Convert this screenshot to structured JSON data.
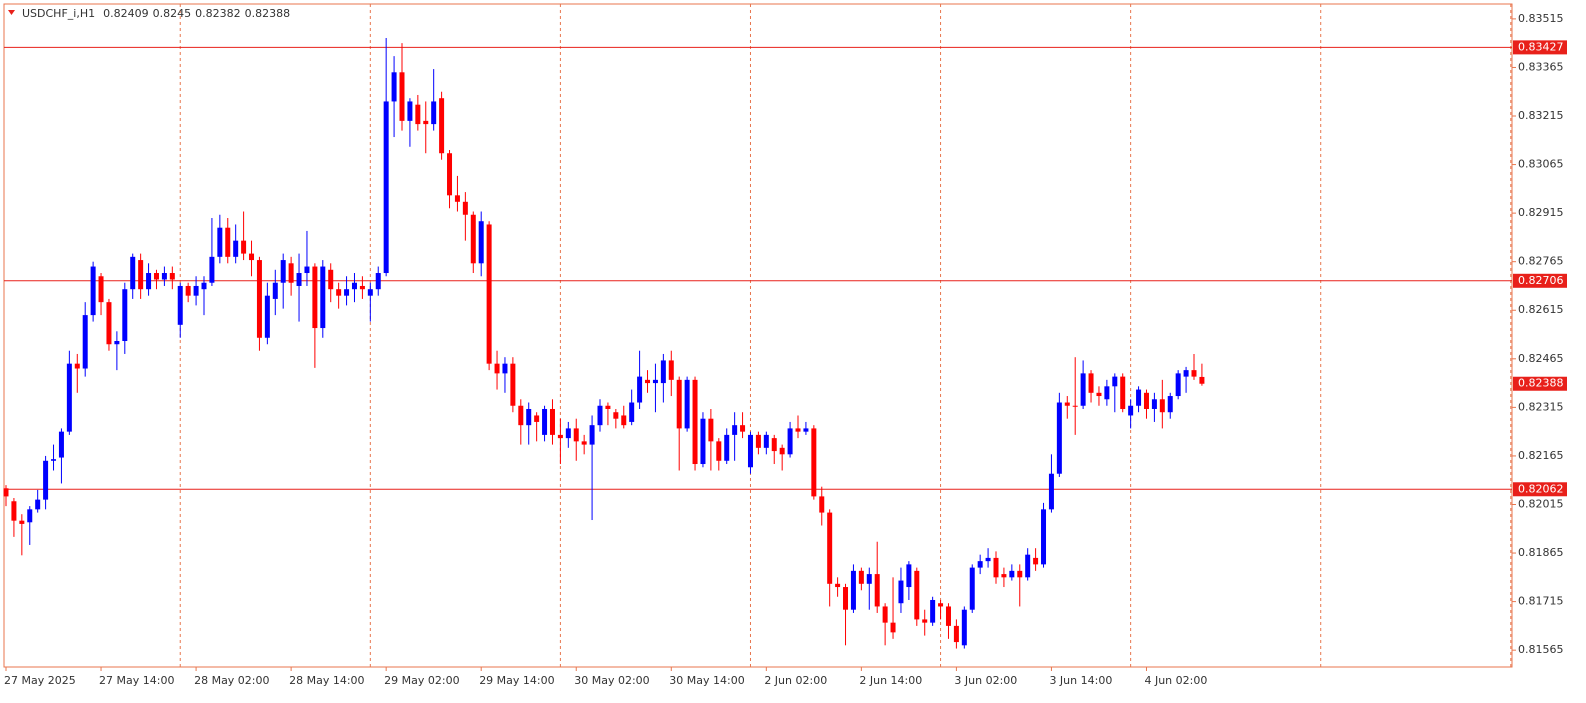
{
  "chart_data": {
    "type": "candlestick",
    "title": "USDCHF_i,H1",
    "up_color": "#0000ff",
    "down_color": "#ff0000",
    "level_color": "#e8201a",
    "grid": true,
    "ylim": [
      0.81513,
      0.83561
    ],
    "yticks": [
      0.83515,
      0.83365,
      0.83215,
      0.83065,
      0.82915,
      0.82765,
      0.82615,
      0.82465,
      0.82315,
      0.82165,
      0.82015,
      0.81865,
      0.81715,
      0.81565
    ],
    "levels": [
      0.83427,
      0.82706,
      0.82062
    ],
    "categories": [
      "27 May 2025",
      null,
      null,
      null,
      null,
      null,
      null,
      null,
      null,
      null,
      null,
      null,
      "27 May 14:00",
      null,
      null,
      null,
      null,
      null,
      null,
      null,
      null,
      null,
      null,
      null,
      "28 May 02:00",
      null,
      null,
      null,
      null,
      null,
      null,
      null,
      null,
      null,
      null,
      null,
      "28 May 14:00",
      null,
      null,
      null,
      null,
      null,
      null,
      null,
      null,
      null,
      null,
      null,
      "29 May 02:00",
      null,
      null,
      null,
      null,
      null,
      null,
      null,
      null,
      null,
      null,
      null,
      "29 May 14:00",
      null,
      null,
      null,
      null,
      null,
      null,
      null,
      null,
      null,
      null,
      null,
      "30 May 02:00",
      null,
      null,
      null,
      null,
      null,
      null,
      null,
      null,
      null,
      null,
      null,
      "30 May 14:00",
      null,
      null,
      null,
      null,
      null,
      null,
      null,
      null,
      null,
      null,
      null,
      "2 Jun 02:00",
      null,
      null,
      null,
      null,
      null,
      null,
      null,
      null,
      null,
      null,
      null,
      "2 Jun 14:00",
      null,
      null,
      null,
      null,
      null,
      null,
      null,
      null,
      null,
      null,
      null,
      "3 Jun 02:00",
      null,
      null,
      null,
      null,
      null,
      null,
      null,
      null,
      null,
      null,
      null,
      "3 Jun 14:00",
      null,
      null,
      null,
      null,
      null,
      null,
      null,
      null,
      null,
      null,
      null,
      "4 Jun 02:00",
      null,
      null,
      null,
      null,
      null,
      null,
      null
    ],
    "open": [
      0.82065,
      0.82025,
      0.81965,
      0.8196,
      0.82,
      0.8203,
      0.8215,
      0.8216,
      0.8224,
      0.8245,
      0.82435,
      0.826,
      0.8272,
      0.8264,
      0.8251,
      0.8252,
      0.8268,
      0.8277,
      0.8268,
      0.8273,
      0.8271,
      0.8273,
      0.8257,
      0.8269,
      0.8266,
      0.8268,
      0.827,
      0.8278,
      0.8287,
      0.8278,
      0.8283,
      0.8279,
      0.8277,
      0.8253,
      0.8265,
      0.827,
      0.8276,
      0.8269,
      0.8273,
      0.8275,
      0.8256,
      0.8274,
      0.8268,
      0.8266,
      0.8268,
      0.8269,
      0.8266,
      0.8268,
      0.8273,
      0.8326,
      0.8335,
      0.832,
      0.8325,
      0.832,
      0.8319,
      0.8327,
      0.831,
      0.8297,
      0.8295,
      0.8291,
      0.8276,
      0.8288,
      0.8245,
      0.8242,
      0.8245,
      0.8232,
      0.8226,
      0.8229,
      0.8223,
      0.8231,
      0.8223,
      0.8222,
      0.8225,
      0.8221,
      0.822,
      0.8226,
      0.8232,
      0.823,
      0.8229,
      0.8227,
      0.8233,
      0.824,
      0.8239,
      0.8239,
      0.8246,
      0.824,
      0.8225,
      0.824,
      0.8214,
      0.8228,
      0.8221,
      0.8215,
      0.8223,
      0.8226,
      0.8213,
      0.8223,
      0.8219,
      0.8222,
      0.8219,
      0.8217,
      0.8225,
      0.8224,
      0.8225,
      0.8204,
      0.8199,
      0.8177,
      0.8176,
      0.8169,
      0.8181,
      0.8177,
      0.818,
      0.817,
      0.8165,
      0.8171,
      0.8176,
      0.8181,
      0.8166,
      0.8165,
      0.8171,
      0.817,
      0.8164,
      0.8158,
      0.8169,
      0.8182,
      0.8184,
      0.8185,
      0.818,
      0.8179,
      0.8181,
      0.8179,
      0.8185,
      0.8183,
      0.82,
      0.8211,
      0.8233,
      0.8232,
      0.8232,
      0.8242,
      0.8236,
      0.8234,
      0.8238,
      0.8241,
      0.8229,
      0.8232,
      0.8236,
      0.8231,
      0.8234,
      0.823,
      0.8235,
      0.8241,
      0.8243,
      0.82409
    ],
    "high": [
      0.82075,
      0.82035,
      0.81985,
      0.8201,
      0.8206,
      0.82165,
      0.822,
      0.8225,
      0.8249,
      0.8248,
      0.8264,
      0.82765,
      0.8273,
      0.8265,
      0.8255,
      0.827,
      0.8279,
      0.8279,
      0.8276,
      0.8274,
      0.8275,
      0.8275,
      0.827,
      0.827,
      0.8272,
      0.8272,
      0.829,
      0.8291,
      0.829,
      0.8288,
      0.8292,
      0.8283,
      0.8278,
      0.827,
      0.8274,
      0.8279,
      0.8278,
      0.8279,
      0.8286,
      0.8276,
      0.8277,
      0.8276,
      0.827,
      0.8272,
      0.8273,
      0.8272,
      0.827,
      0.8275,
      0.83456,
      0.834,
      0.8344,
      0.8327,
      0.8328,
      0.8326,
      0.8336,
      0.8329,
      0.8311,
      0.8303,
      0.8298,
      0.8292,
      0.8292,
      0.8289,
      0.8249,
      0.8247,
      0.8247,
      0.8234,
      0.8233,
      0.823,
      0.8232,
      0.8234,
      0.8228,
      0.8227,
      0.8228,
      0.8223,
      0.8229,
      0.8234,
      0.8233,
      0.8231,
      0.8232,
      0.8237,
      0.8249,
      0.8243,
      0.8245,
      0.8248,
      0.8249,
      0.8241,
      0.8241,
      0.8241,
      0.823,
      0.8231,
      0.8222,
      0.8225,
      0.823,
      0.823,
      0.8224,
      0.8224,
      0.8224,
      0.8223,
      0.822,
      0.8227,
      0.8229,
      0.8227,
      0.8226,
      0.8207,
      0.82,
      0.8179,
      0.8177,
      0.8183,
      0.8182,
      0.8182,
      0.819,
      0.8171,
      0.8179,
      0.8182,
      0.8184,
      0.8182,
      0.8169,
      0.8173,
      0.8172,
      0.8171,
      0.8166,
      0.817,
      0.8183,
      0.8186,
      0.8188,
      0.8187,
      0.8182,
      0.8183,
      0.8183,
      0.8188,
      0.8188,
      0.8202,
      0.8217,
      0.8236,
      0.8235,
      0.8247,
      0.8246,
      0.8243,
      0.8238,
      0.824,
      0.8242,
      0.8242,
      0.8234,
      0.8238,
      0.8237,
      0.8236,
      0.824,
      0.8236,
      0.8243,
      0.8244,
      0.8248,
      0.8245
    ],
    "low": [
      0.8201,
      0.81915,
      0.81858,
      0.8189,
      0.8199,
      0.82,
      0.8212,
      0.8208,
      0.8223,
      0.8236,
      0.8241,
      0.8258,
      0.826,
      0.8249,
      0.8243,
      0.8248,
      0.8265,
      0.8265,
      0.8266,
      0.8268,
      0.8269,
      0.8268,
      0.8253,
      0.8264,
      0.8263,
      0.826,
      0.8269,
      0.8276,
      0.8276,
      0.8276,
      0.8277,
      0.8272,
      0.8249,
      0.8251,
      0.826,
      0.8262,
      0.8266,
      0.8258,
      0.8269,
      0.82437,
      0.8253,
      0.8264,
      0.8262,
      0.8263,
      0.8264,
      0.8265,
      0.8258,
      0.8266,
      0.8272,
      0.8315,
      0.8317,
      0.8312,
      0.8317,
      0.831,
      0.8317,
      0.8308,
      0.8293,
      0.8292,
      0.8283,
      0.8273,
      0.8272,
      0.8243,
      0.8237,
      0.8236,
      0.823,
      0.822,
      0.822,
      0.8221,
      0.8221,
      0.822,
      0.8214,
      0.8219,
      0.8215,
      0.8217,
      0.81967,
      0.8224,
      0.8226,
      0.8225,
      0.8225,
      0.8226,
      0.8231,
      0.8236,
      0.823,
      0.8233,
      0.8235,
      0.8212,
      0.8224,
      0.8212,
      0.8213,
      0.8212,
      0.8212,
      0.8214,
      0.8215,
      0.8222,
      0.8211,
      0.8217,
      0.8217,
      0.8214,
      0.8212,
      0.8216,
      0.8222,
      0.8223,
      0.8203,
      0.8195,
      0.817,
      0.8173,
      0.8158,
      0.8168,
      0.8175,
      0.8169,
      0.8168,
      0.8158,
      0.816,
      0.8168,
      0.8172,
      0.8164,
      0.8161,
      0.8164,
      0.8166,
      0.816,
      0.8157,
      0.8157,
      0.8168,
      0.818,
      0.8182,
      0.8177,
      0.8176,
      0.8178,
      0.817,
      0.8178,
      0.8181,
      0.8182,
      0.8199,
      0.821,
      0.8228,
      0.8223,
      0.8231,
      0.8233,
      0.8232,
      0.8232,
      0.823,
      0.823,
      0.8225,
      0.823,
      0.8228,
      0.8227,
      0.8225,
      0.8228,
      0.8234,
      0.8236,
      0.824,
      0.82382
    ],
    "close": [
      0.8204,
      0.81965,
      0.81955,
      0.82,
      0.8203,
      0.8215,
      0.82155,
      0.8224,
      0.8245,
      0.82435,
      0.826,
      0.8275,
      0.8264,
      0.8251,
      0.8252,
      0.8268,
      0.8278,
      0.8268,
      0.8273,
      0.8271,
      0.8273,
      0.8271,
      0.8269,
      0.8266,
      0.8269,
      0.827,
      0.8278,
      0.8287,
      0.8278,
      0.8283,
      0.8279,
      0.8277,
      0.8253,
      0.8266,
      0.827,
      0.8277,
      0.827,
      0.8273,
      0.8275,
      0.8256,
      0.8275,
      0.8268,
      0.8266,
      0.8268,
      0.827,
      0.8268,
      0.8268,
      0.8273,
      0.8326,
      0.8335,
      0.832,
      0.8326,
      0.8319,
      0.8319,
      0.8326,
      0.831,
      0.8297,
      0.8295,
      0.8291,
      0.8276,
      0.8289,
      0.8245,
      0.8242,
      0.8245,
      0.8232,
      0.8226,
      0.8231,
      0.8227,
      0.8231,
      0.8223,
      0.8222,
      0.8225,
      0.8221,
      0.822,
      0.8226,
      0.8232,
      0.8231,
      0.8228,
      0.8226,
      0.8233,
      0.8241,
      0.8239,
      0.824,
      0.8246,
      0.824,
      0.8225,
      0.824,
      0.8214,
      0.8228,
      0.8221,
      0.8215,
      0.8223,
      0.8226,
      0.8224,
      0.8223,
      0.8219,
      0.8223,
      0.8218,
      0.8217,
      0.8225,
      0.8224,
      0.8225,
      0.8204,
      0.8199,
      0.8177,
      0.8176,
      0.8169,
      0.8181,
      0.8177,
      0.818,
      0.817,
      0.8165,
      0.8162,
      0.8178,
      0.8183,
      0.8166,
      0.8165,
      0.8172,
      0.817,
      0.8164,
      0.8159,
      0.8169,
      0.8182,
      0.8184,
      0.8185,
      0.8179,
      0.8179,
      0.8181,
      0.8179,
      0.8186,
      0.8183,
      0.82,
      0.8211,
      0.8233,
      0.8232,
      0.8232,
      0.8242,
      0.8236,
      0.8235,
      0.8238,
      0.8241,
      0.8231,
      0.8232,
      0.8237,
      0.8231,
      0.8234,
      0.823,
      0.8235,
      0.8242,
      0.8243,
      0.8241,
      0.82388
    ]
  }
}
